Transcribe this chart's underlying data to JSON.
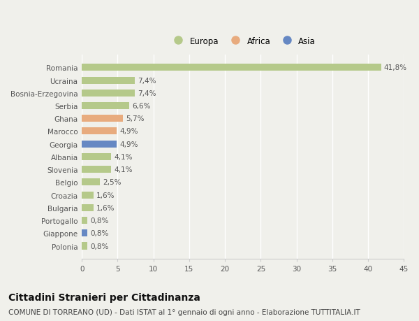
{
  "categories": [
    "Polonia",
    "Giappone",
    "Portogallo",
    "Bulgaria",
    "Croazia",
    "Belgio",
    "Slovenia",
    "Albania",
    "Georgia",
    "Marocco",
    "Ghana",
    "Serbia",
    "Bosnia-Erzegovina",
    "Ucraina",
    "Romania"
  ],
  "values": [
    0.8,
    0.8,
    0.8,
    1.6,
    1.6,
    2.5,
    4.1,
    4.1,
    4.9,
    4.9,
    5.7,
    6.6,
    7.4,
    7.4,
    41.8
  ],
  "labels": [
    "0,8%",
    "0,8%",
    "0,8%",
    "1,6%",
    "1,6%",
    "2,5%",
    "4,1%",
    "4,1%",
    "4,9%",
    "4,9%",
    "5,7%",
    "6,6%",
    "7,4%",
    "7,4%",
    "41,8%"
  ],
  "colors": [
    "#b5c98a",
    "#6688c3",
    "#b5c98a",
    "#b5c98a",
    "#b5c98a",
    "#b5c98a",
    "#b5c98a",
    "#b5c98a",
    "#6688c3",
    "#e8ab7e",
    "#e8ab7e",
    "#b5c98a",
    "#b5c98a",
    "#b5c98a",
    "#b5c98a"
  ],
  "continent_colors": {
    "Europa": "#b5c98a",
    "Africa": "#e8ab7e",
    "Asia": "#6688c3"
  },
  "title": "Cittadini Stranieri per Cittadinanza",
  "subtitle": "COMUNE DI TORREANO (UD) - Dati ISTAT al 1° gennaio di ogni anno - Elaborazione TUTTITALIA.IT",
  "xlim": [
    0,
    45
  ],
  "xticks": [
    0,
    5,
    10,
    15,
    20,
    25,
    30,
    35,
    40,
    45
  ],
  "background_color": "#f0f0eb",
  "bar_height": 0.55,
  "title_fontsize": 10,
  "subtitle_fontsize": 7.5,
  "tick_fontsize": 7.5,
  "label_fontsize": 7.5,
  "legend_fontsize": 8.5
}
